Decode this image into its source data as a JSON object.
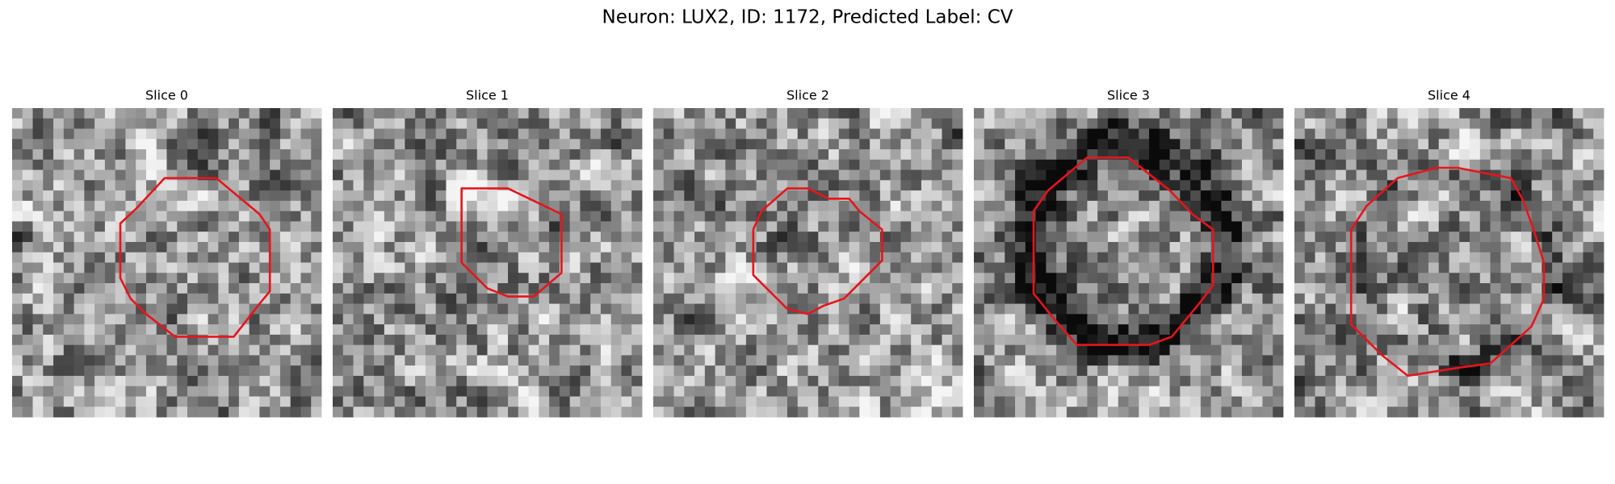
{
  "title": "Neuron: LUX2, ID: 1172, Predicted Label: CV",
  "panels": [
    {
      "title": "Slice 0"
    },
    {
      "title": "Slice 1"
    },
    {
      "title": "Slice 2"
    },
    {
      "title": "Slice 3"
    },
    {
      "title": "Slice 4"
    }
  ]
}
